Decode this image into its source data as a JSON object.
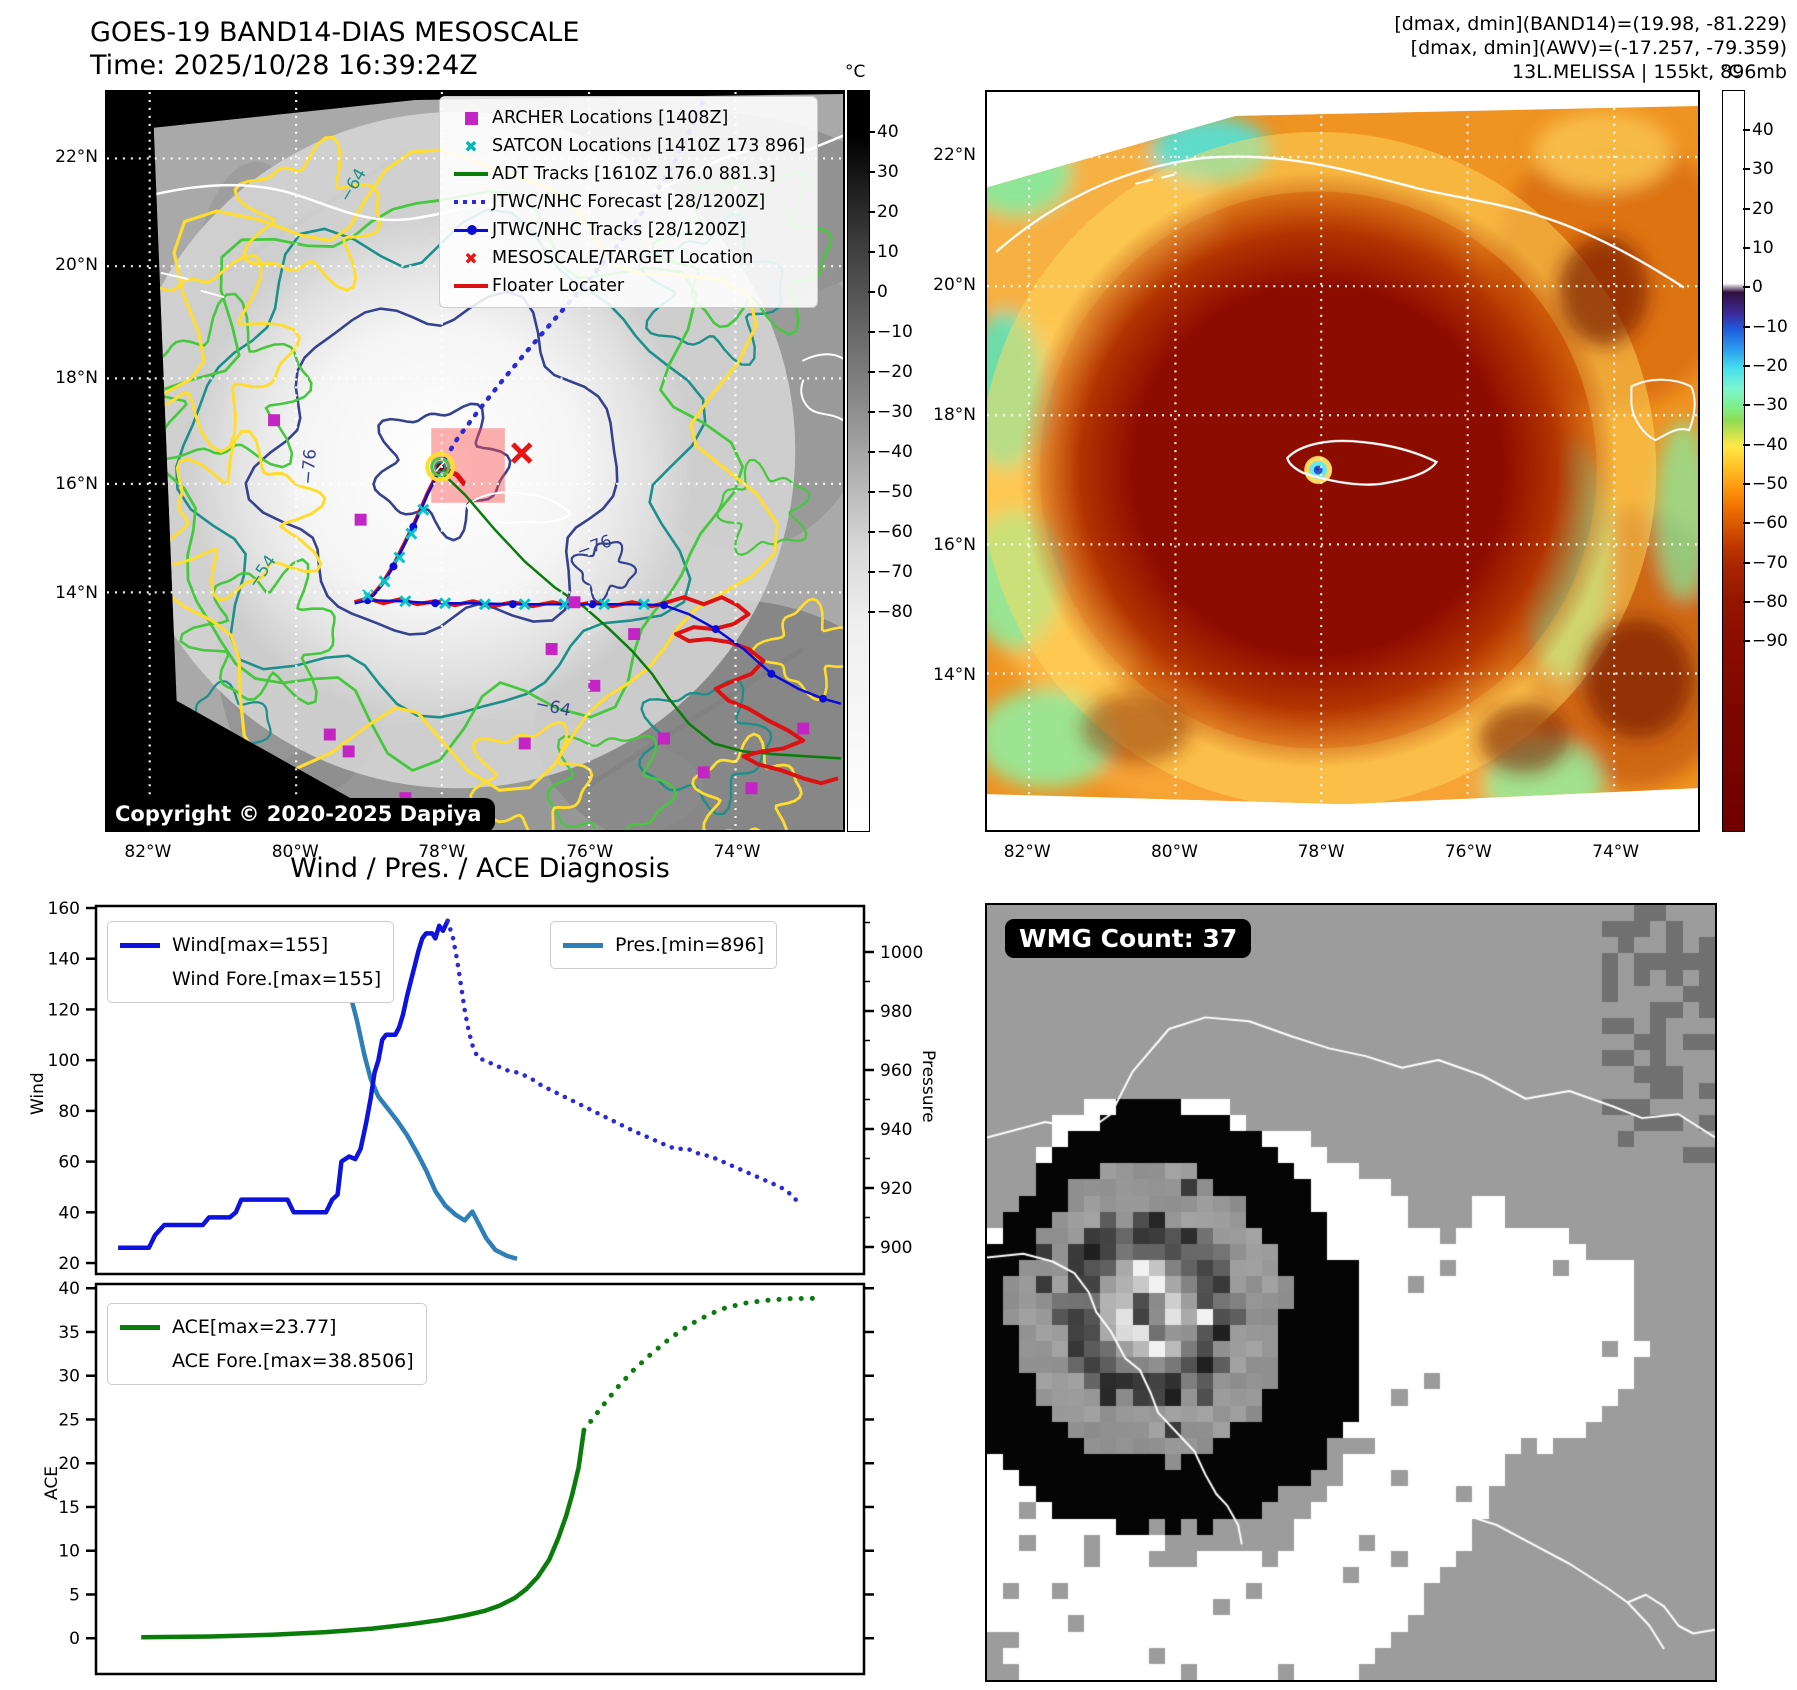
{
  "header": {
    "title_line1": "GOES-19 BAND14-DIAS MESOSCALE",
    "title_line2": "Time: 2025/10/28 16:39:24Z",
    "right_lines": [
      "[dmax, dmin](BAND14)=(19.98, -81.229)",
      "[dmax, dmin](AWV)=(-17.257, -79.359)",
      "13L.MELISSA | 155kt, 896mb"
    ]
  },
  "band14_map": {
    "legend": [
      {
        "label": "ARCHER Locations [1408Z]",
        "marker": "square",
        "color": "#c424c4"
      },
      {
        "label": "SATCON Locations [1410Z 173 896]",
        "marker": "cross",
        "color": "#00b8b8"
      },
      {
        "label": "ADT Tracks [1610Z 176.0 881.3]",
        "marker": "line",
        "color": "#0a7c0a"
      },
      {
        "label": "JTWC/NHC Forecast [28/1200Z]",
        "marker": "dotted",
        "color": "#2a2ad8"
      },
      {
        "label": "JTWC/NHC Tracks [28/1200Z]",
        "marker": "line-dot",
        "color": "#0b0bd6"
      },
      {
        "label": "MESOSCALE/TARGET Location",
        "marker": "cross",
        "color": "#e81414"
      },
      {
        "label": "Floater Locater",
        "marker": "line",
        "color": "#dd1111"
      }
    ],
    "copyright": "Copyright © 2020-2025 Dapiya",
    "contour_labels": [
      "-64",
      "-76",
      "-54",
      "-76",
      "-64"
    ],
    "x_ticks": [
      "82°W",
      "80°W",
      "78°W",
      "76°W",
      "74°W"
    ],
    "y_ticks": [
      "22°N",
      "20°N",
      "18°N",
      "16°N",
      "14°N"
    ],
    "colorbar": {
      "unit": "°C",
      "ticks": [
        40,
        30,
        20,
        10,
        0,
        -10,
        -20,
        -30,
        -40,
        -50,
        -60,
        -70,
        -80
      ]
    }
  },
  "awv_map": {
    "x_ticks": [
      "82°W",
      "80°W",
      "78°W",
      "76°W",
      "74°W"
    ],
    "y_ticks": [
      "22°N",
      "20°N",
      "18°N",
      "16°N",
      "14°N"
    ],
    "colorbar": {
      "unit": "°C",
      "ticks": [
        40,
        30,
        20,
        10,
        0,
        -10,
        -20,
        -30,
        -40,
        -50,
        -60,
        -70,
        -80,
        -90
      ]
    }
  },
  "diagnosis": {
    "wind_ticks": [
      160,
      140,
      120,
      100,
      80,
      60,
      40,
      20
    ],
    "pressure_ticks": [
      1000,
      980,
      960,
      940,
      920,
      900
    ],
    "ace_ticks": [
      40,
      35,
      30,
      25,
      20,
      15,
      10,
      5,
      0
    ]
  },
  "wmg": {
    "badge": "WMG Count: 37"
  },
  "colors": {
    "wind": "#0d12dd",
    "wind_forecast": "#2a2ad8",
    "pressure": "#2e7fb8",
    "ace": "#0a7c0a",
    "target_red": "#e81414",
    "archer_magenta": "#c424c4",
    "satcon_cyan": "#00b8b8"
  },
  "chart_data": [
    {
      "type": "line",
      "title": "Wind / Pres. / ACE Diagnosis",
      "ylabel": "Wind",
      "y2label": "Pressure",
      "ylim": [
        20,
        160
      ],
      "y2lim": [
        896,
        1010
      ],
      "x_units": "fraction of time axis (no labels shown)",
      "grid": false,
      "legend_position": "upper-left and upper-right",
      "series": [
        {
          "name": "Wind[max=155]",
          "axis": "wind",
          "style": "solid",
          "color": "#0d12dd",
          "points": [
            [
              0.03,
              26
            ],
            [
              0.07,
              26
            ],
            [
              0.078,
              31
            ],
            [
              0.09,
              35
            ],
            [
              0.14,
              35
            ],
            [
              0.148,
              38
            ],
            [
              0.175,
              38
            ],
            [
              0.183,
              40
            ],
            [
              0.19,
              45
            ],
            [
              0.25,
              45
            ],
            [
              0.258,
              40
            ],
            [
              0.3,
              40
            ],
            [
              0.308,
              45
            ],
            [
              0.315,
              47
            ],
            [
              0.32,
              60
            ],
            [
              0.33,
              62
            ],
            [
              0.338,
              61
            ],
            [
              0.345,
              65
            ],
            [
              0.352,
              75
            ],
            [
              0.358,
              85
            ],
            [
              0.363,
              95
            ],
            [
              0.368,
              100
            ],
            [
              0.373,
              108
            ],
            [
              0.378,
              110
            ],
            [
              0.39,
              110
            ],
            [
              0.395,
              113
            ],
            [
              0.4,
              118
            ],
            [
              0.405,
              125
            ],
            [
              0.41,
              131
            ],
            [
              0.415,
              137
            ],
            [
              0.42,
              143
            ],
            [
              0.425,
              148
            ],
            [
              0.43,
              150
            ],
            [
              0.438,
              150
            ],
            [
              0.442,
              148
            ],
            [
              0.447,
              153
            ],
            [
              0.452,
              151
            ],
            [
              0.458,
              155
            ]
          ]
        },
        {
          "name": "Wind Fore.[max=155]",
          "axis": "wind",
          "style": "dotted",
          "color": "#2a2ad8",
          "points": [
            [
              0.458,
              155
            ],
            [
              0.465,
              148
            ],
            [
              0.47,
              140
            ],
            [
              0.475,
              130
            ],
            [
              0.48,
              120
            ],
            [
              0.485,
              112
            ],
            [
              0.49,
              106
            ],
            [
              0.497,
              101
            ],
            [
              0.505,
              100
            ],
            [
              0.52,
              98
            ],
            [
              0.535,
              96
            ],
            [
              0.55,
              95
            ],
            [
              0.565,
              93
            ],
            [
              0.58,
              90
            ],
            [
              0.6,
              87
            ],
            [
              0.62,
              84
            ],
            [
              0.64,
              81
            ],
            [
              0.66,
              78
            ],
            [
              0.68,
              75
            ],
            [
              0.7,
              72
            ],
            [
              0.715,
              70
            ],
            [
              0.73,
              68
            ],
            [
              0.745,
              66
            ],
            [
              0.755,
              65
            ],
            [
              0.77,
              65
            ],
            [
              0.785,
              63
            ],
            [
              0.8,
              62
            ],
            [
              0.815,
              60
            ],
            [
              0.83,
              58
            ],
            [
              0.845,
              56
            ],
            [
              0.86,
              54
            ],
            [
              0.875,
              52
            ],
            [
              0.89,
              50
            ],
            [
              0.9,
              48
            ],
            [
              0.91,
              45
            ]
          ]
        },
        {
          "name": "Pres.[min=896]",
          "axis": "pressure",
          "style": "solid",
          "color": "#2e7fb8",
          "points": [
            [
              0.04,
              1005
            ],
            [
              0.12,
              1005
            ],
            [
              0.18,
              1004
            ],
            [
              0.23,
              1002
            ],
            [
              0.28,
              1001
            ],
            [
              0.3,
              1000
            ],
            [
              0.31,
              998
            ],
            [
              0.32,
              994
            ],
            [
              0.33,
              987
            ],
            [
              0.34,
              977
            ],
            [
              0.35,
              965
            ],
            [
              0.358,
              957
            ],
            [
              0.368,
              951
            ],
            [
              0.38,
              947
            ],
            [
              0.392,
              943
            ],
            [
              0.405,
              938
            ],
            [
              0.418,
              932
            ],
            [
              0.43,
              926
            ],
            [
              0.442,
              919
            ],
            [
              0.455,
              914
            ],
            [
              0.468,
              911
            ],
            [
              0.48,
              909
            ],
            [
              0.49,
              912
            ],
            [
              0.498,
              908
            ],
            [
              0.508,
              903
            ],
            [
              0.52,
              899
            ],
            [
              0.535,
              897
            ],
            [
              0.548,
              896
            ]
          ]
        }
      ]
    },
    {
      "type": "line",
      "title": "",
      "ylabel": "ACE",
      "ylim": [
        0,
        40
      ],
      "x_units": "fraction of time axis (no labels shown)",
      "grid": false,
      "legend_position": "upper-left",
      "series": [
        {
          "name": "ACE[max=23.77]",
          "style": "solid",
          "color": "#0a7c0a",
          "points": [
            [
              0.06,
              0.1
            ],
            [
              0.15,
              0.2
            ],
            [
              0.23,
              0.4
            ],
            [
              0.3,
              0.7
            ],
            [
              0.36,
              1.1
            ],
            [
              0.41,
              1.6
            ],
            [
              0.45,
              2.1
            ],
            [
              0.48,
              2.6
            ],
            [
              0.505,
              3.1
            ],
            [
              0.525,
              3.7
            ],
            [
              0.545,
              4.6
            ],
            [
              0.56,
              5.6
            ],
            [
              0.575,
              7.0
            ],
            [
              0.59,
              9.0
            ],
            [
              0.602,
              11.5
            ],
            [
              0.612,
              14.0
            ],
            [
              0.62,
              16.5
            ],
            [
              0.628,
              19.5
            ],
            [
              0.635,
              23.77
            ]
          ]
        },
        {
          "name": "ACE Fore.[max=38.8506]",
          "style": "dotted",
          "color": "#0a7c0a",
          "points": [
            [
              0.635,
              23.77
            ],
            [
              0.65,
              25.5
            ],
            [
              0.665,
              27.2
            ],
            [
              0.68,
              28.8
            ],
            [
              0.7,
              30.7
            ],
            [
              0.72,
              32.3
            ],
            [
              0.74,
              33.8
            ],
            [
              0.76,
              35.1
            ],
            [
              0.78,
              36.2
            ],
            [
              0.8,
              37.1
            ],
            [
              0.82,
              37.8
            ],
            [
              0.845,
              38.3
            ],
            [
              0.87,
              38.6
            ],
            [
              0.9,
              38.8
            ],
            [
              0.935,
              38.85
            ]
          ]
        }
      ]
    }
  ]
}
